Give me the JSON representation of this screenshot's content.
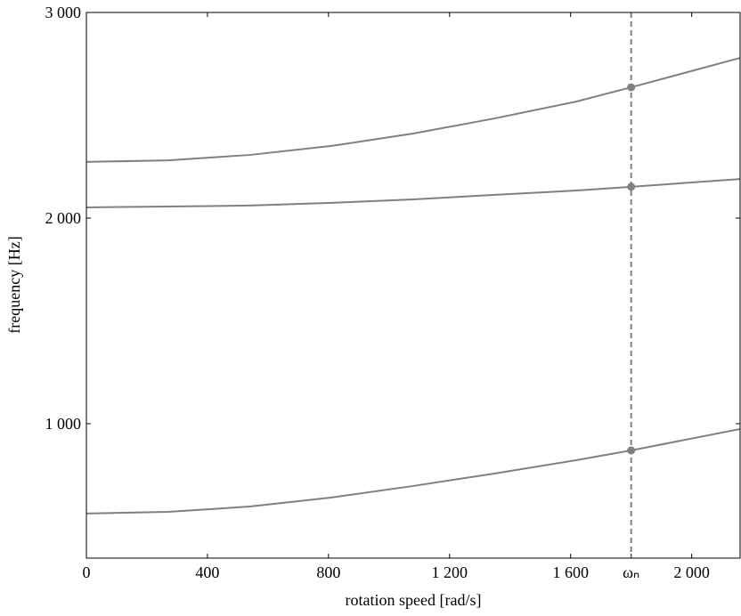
{
  "chart_data": {
    "type": "line",
    "x_label": "rotation speed [rad/s]",
    "y_label": "frequency [Hz]",
    "x": [
      0,
      270,
      540,
      810,
      1080,
      1350,
      1620,
      1800,
      2160
    ],
    "series": [
      {
        "color": "#808080",
        "values": [
          563,
          571,
          597,
          641,
          697,
          758,
          823,
          870,
          974
        ]
      },
      {
        "color": "#808080",
        "values": [
          2052,
          2056,
          2061,
          2074,
          2091,
          2113,
          2134,
          2152,
          2190
        ]
      },
      {
        "color": "#808080",
        "values": [
          2273,
          2281,
          2307,
          2351,
          2411,
          2485,
          2567,
          2636,
          2779
        ]
      }
    ],
    "vline": 1800,
    "xlim": [
      0,
      2160
    ],
    "ylim": [
      346,
      3000
    ],
    "xticks": [
      0,
      400,
      800,
      {
        "value": 1200,
        "label": "1 200"
      },
      {
        "value": 1600,
        "label": "1 600"
      },
      {
        "value": 1800,
        "label": "ωₙ"
      },
      {
        "value": 2000,
        "label": "2 000"
      }
    ],
    "yticks": [
      {
        "value": 1000,
        "label": "1 000"
      },
      {
        "value": 2000,
        "label": "2 000"
      },
      {
        "value": 3000,
        "label": "3 000"
      }
    ]
  }
}
